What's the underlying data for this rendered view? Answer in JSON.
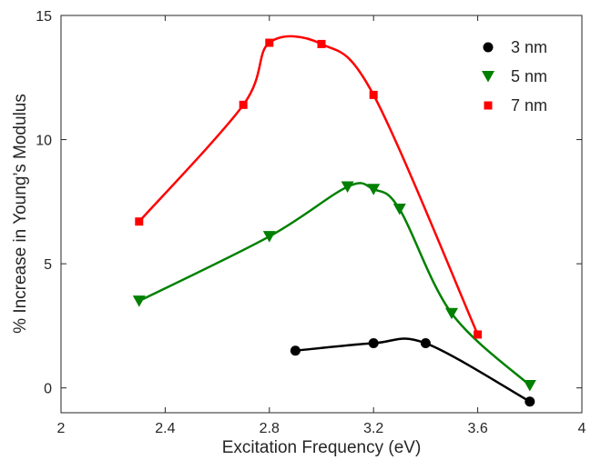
{
  "chart_data": {
    "type": "line",
    "title": "",
    "xlabel": "Excitation Frequency (eV)",
    "ylabel": "% Increase in Young’s Modulus",
    "xlim": [
      2,
      4
    ],
    "ylim": [
      -1,
      15
    ],
    "xticks": [
      2,
      2.4,
      2.8,
      3.2,
      3.6,
      4
    ],
    "xtick_labels": [
      "2",
      "2.4",
      "2.8",
      "3.2",
      "3.6",
      "4"
    ],
    "yticks": [
      0,
      5,
      10,
      15
    ],
    "ytick_labels": [
      "0",
      "5",
      "10",
      "15"
    ],
    "grid": false,
    "legend_position": "top-right",
    "series": [
      {
        "name": "3 nm",
        "color": "#000000",
        "marker": "circle",
        "x": [
          2.9,
          3.2,
          3.4,
          3.8
        ],
        "y": [
          1.5,
          1.8,
          1.8,
          -0.55
        ]
      },
      {
        "name": "5 nm",
        "color": "#008000",
        "marker": "triangle-down",
        "x": [
          2.3,
          2.8,
          3.1,
          3.2,
          3.3,
          3.5,
          3.8
        ],
        "y": [
          3.5,
          6.1,
          8.1,
          8.0,
          7.2,
          3.0,
          0.1
        ]
      },
      {
        "name": "7 nm",
        "color": "#ff0000",
        "marker": "square",
        "x": [
          2.3,
          2.7,
          2.8,
          3.0,
          3.2,
          3.6
        ],
        "y": [
          6.7,
          11.4,
          13.9,
          13.85,
          11.8,
          2.15
        ]
      }
    ]
  }
}
